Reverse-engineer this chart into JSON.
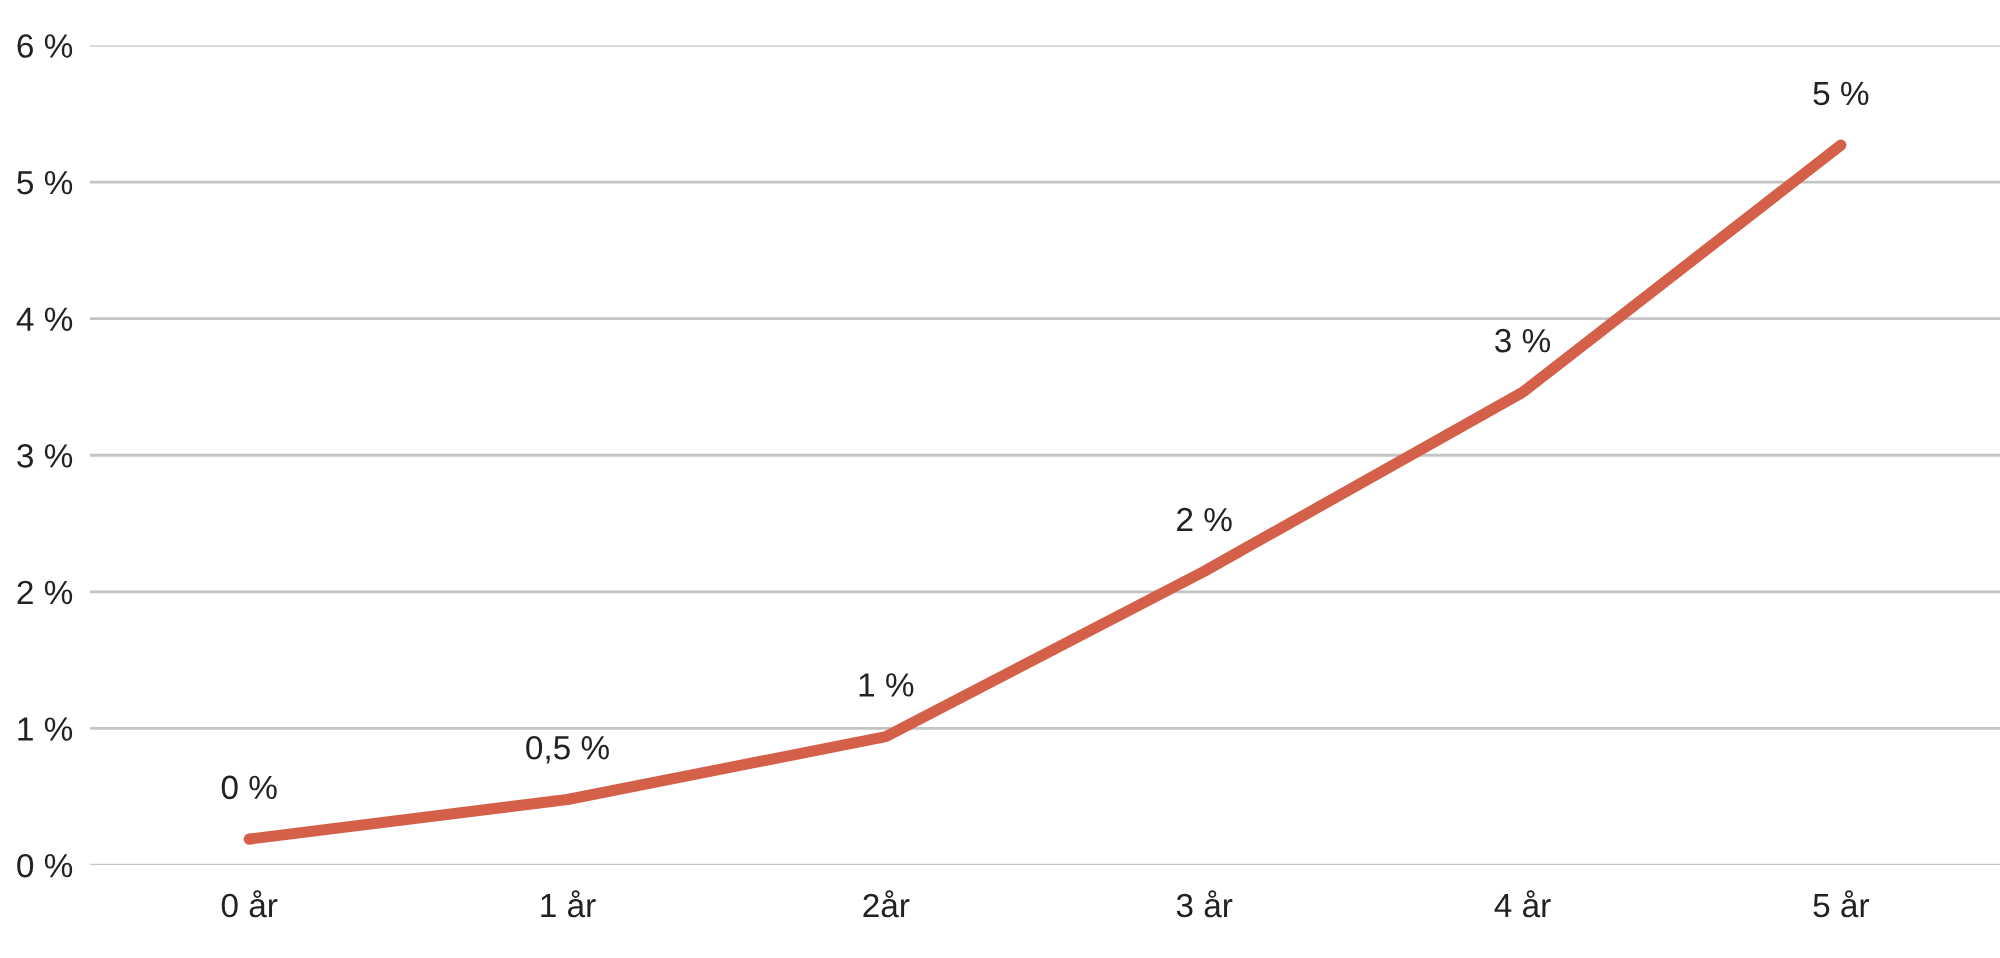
{
  "chart_data": {
    "type": "line",
    "categories": [
      "0 år",
      "1 år",
      "2år",
      "3 år",
      "4 år",
      "5 år"
    ],
    "series": [
      {
        "color": "#d4604a",
        "values": [
          0.19,
          0.48,
          0.94,
          2.15,
          3.46,
          5.27
        ],
        "value_labels": [
          "0 %",
          "0,5 %",
          "1 %",
          "2 %",
          "3 %",
          "5 %"
        ]
      }
    ],
    "ylim": [
      0,
      6
    ],
    "yticks": [
      {
        "value": 0,
        "label": "0 %"
      },
      {
        "value": 1,
        "label": "1 %"
      },
      {
        "value": 2,
        "label": "2 %"
      },
      {
        "value": 3,
        "label": "3 %"
      },
      {
        "value": 4,
        "label": "4 %"
      },
      {
        "value": 5,
        "label": "5 %"
      },
      {
        "value": 6,
        "label": "6 %"
      }
    ],
    "grid": "y",
    "marker": "none",
    "line_style": "solid"
  }
}
